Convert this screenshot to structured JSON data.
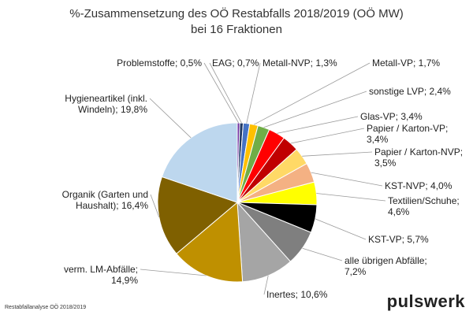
{
  "chart_data": {
    "type": "pie",
    "title_lines": [
      "%-Zusammensetzung des OÖ Restabfalls 2018/2019 (OÖ MW)",
      "bei 16 Fraktionen"
    ],
    "slices": [
      {
        "label_lines": [
          "Problemstoffe; 0,5%"
        ],
        "value": 0.5,
        "color": "#7030A0"
      },
      {
        "label_lines": [
          "EAG; 0,7%"
        ],
        "value": 0.7,
        "color": "#1F3864"
      },
      {
        "label_lines": [
          "Metall-NVP; 1,3%"
        ],
        "value": 1.3,
        "color": "#4472C4"
      },
      {
        "label_lines": [
          "Metall-VP; 1,7%"
        ],
        "value": 1.7,
        "color": "#FFC000"
      },
      {
        "label_lines": [
          "sonstige LVP; 2,4%"
        ],
        "value": 2.4,
        "color": "#70AD47"
      },
      {
        "label_lines": [
          "Glas-VP; 3,4%"
        ],
        "value": 3.4,
        "color": "#FF0000"
      },
      {
        "label_lines": [
          "Papier / Karton-VP;",
          "3,4%"
        ],
        "value": 3.4,
        "color": "#C00000"
      },
      {
        "label_lines": [
          "Papier / Karton-NVP;",
          "3,5%"
        ],
        "value": 3.5,
        "color": "#FFD966"
      },
      {
        "label_lines": [
          "KST-NVP; 4,0%"
        ],
        "value": 4.0,
        "color": "#F4B183"
      },
      {
        "label_lines": [
          "Textilien/Schuhe;",
          "4,6%"
        ],
        "value": 4.6,
        "color": "#FFFF00"
      },
      {
        "label_lines": [
          "KST-VP; 5,7%"
        ],
        "value": 5.7,
        "color": "#000000"
      },
      {
        "label_lines": [
          "alle übrigen Abfälle;",
          "7,2%"
        ],
        "value": 7.2,
        "color": "#7F7F7F"
      },
      {
        "label_lines": [
          "Inertes; 10,6%"
        ],
        "value": 10.6,
        "color": "#A5A5A5"
      },
      {
        "label_lines": [
          "verm. LM-Abfälle;",
          "14,9%"
        ],
        "value": 14.9,
        "color": "#BF9000"
      },
      {
        "label_lines": [
          "Organik (Garten und",
          "Haushalt); 16,4%"
        ],
        "value": 16.4,
        "color": "#7F6000"
      },
      {
        "label_lines": [
          "Hygieneartikel (inkl.",
          "Windeln); 19,8%"
        ],
        "value": 19.8,
        "color": "#BDD7EE"
      }
    ]
  },
  "footer": {
    "source": "Restabfallanalyse OÖ 2018/2019",
    "brand": "pulswerk"
  }
}
